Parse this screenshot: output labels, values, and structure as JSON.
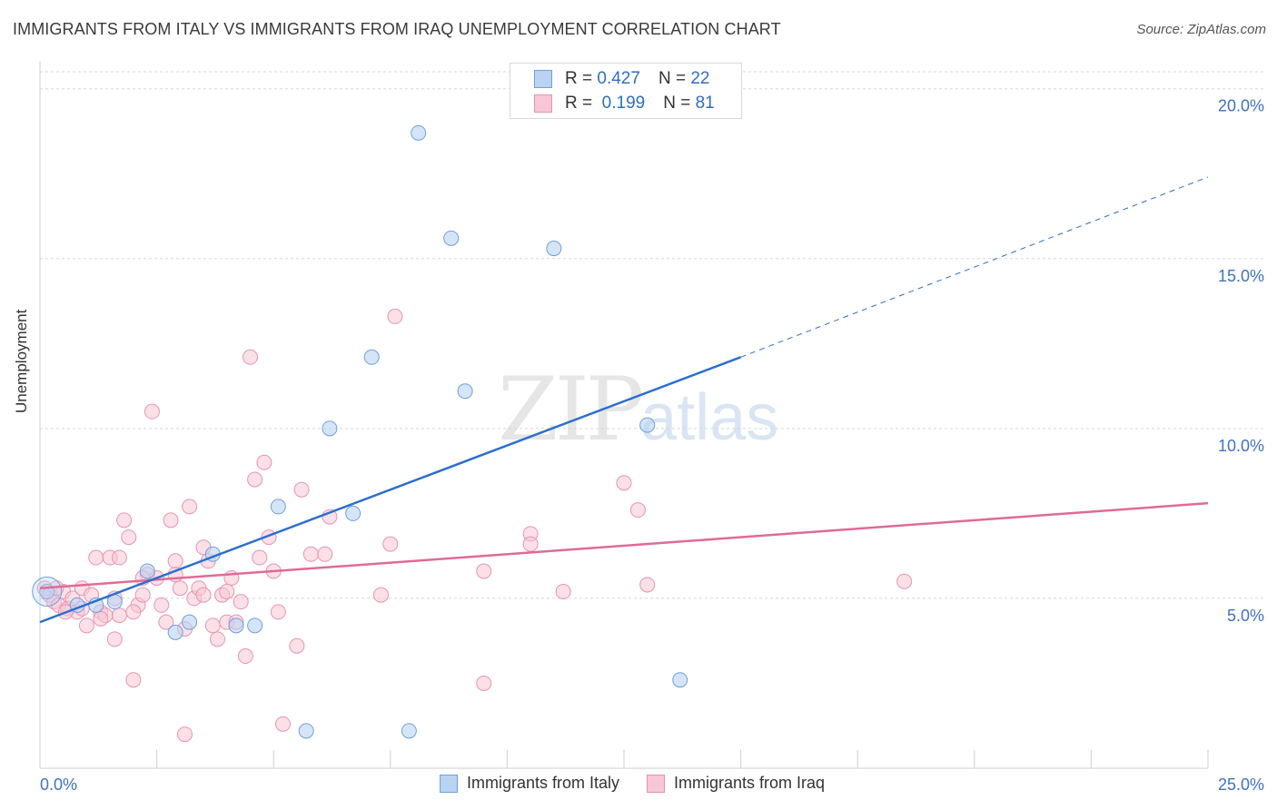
{
  "header": {
    "title": "IMMIGRANTS FROM ITALY VS IMMIGRANTS FROM IRAQ UNEMPLOYMENT CORRELATION CHART",
    "source": "Source: ZipAtlas.com"
  },
  "watermark": {
    "zip": "ZIP",
    "atlas": "atlas"
  },
  "stats": {
    "italy": {
      "r_label": "R =",
      "r_value": "0.427",
      "n_label": "N =",
      "n_value": "22"
    },
    "iraq": {
      "r_label": "R =",
      "r_value": "0.199",
      "n_label": "N =",
      "n_value": "81"
    }
  },
  "legend": {
    "italy": "Immigrants from Italy",
    "iraq": "Immigrants from Iraq"
  },
  "colors": {
    "italy_fill": "#b9d3f3",
    "italy_stroke": "#6fa0dd",
    "italy_line": "#2b6fce",
    "iraq_fill": "#f8c6d6",
    "iraq_stroke": "#e894b0",
    "iraq_line": "#e06b96",
    "tick_label": "#3f72c2"
  },
  "chart_data": {
    "type": "scatter",
    "title": "IMMIGRANTS FROM ITALY VS IMMIGRANTS FROM IRAQ UNEMPLOYMENT CORRELATION CHART",
    "xlabel": "",
    "ylabel": "Unemployment",
    "xlim": [
      0,
      25
    ],
    "ylim": [
      0,
      20.5
    ],
    "x_tick_labels": [
      "0.0%",
      "25.0%"
    ],
    "y_ticks": [
      5,
      10,
      15,
      20
    ],
    "y_tick_labels": [
      "5.0%",
      "10.0%",
      "15.0%",
      "20.0%"
    ],
    "grid": "horizontal dashed",
    "legend_position": "bottom",
    "series": [
      {
        "name": "Immigrants from Italy",
        "points": [
          [
            0.15,
            5.2
          ],
          [
            1.2,
            4.8
          ],
          [
            2.3,
            5.8
          ],
          [
            2.9,
            4.0
          ],
          [
            3.2,
            4.3
          ],
          [
            3.7,
            6.3
          ],
          [
            4.2,
            4.2
          ],
          [
            4.6,
            4.2
          ],
          [
            5.1,
            7.7
          ],
          [
            5.7,
            1.1
          ],
          [
            6.2,
            10.0
          ],
          [
            6.7,
            7.5
          ],
          [
            7.1,
            12.1
          ],
          [
            7.9,
            1.1
          ],
          [
            8.1,
            18.7
          ],
          [
            8.8,
            15.6
          ],
          [
            9.1,
            11.1
          ],
          [
            11.0,
            15.3
          ],
          [
            13.0,
            10.1
          ],
          [
            13.7,
            2.6
          ],
          [
            0.8,
            4.8
          ],
          [
            1.6,
            4.9
          ]
        ],
        "trend": {
          "x": [
            0,
            15
          ],
          "y": [
            4.3,
            12.1
          ],
          "dashed_to": [
            25,
            17.4
          ]
        }
      },
      {
        "name": "Immigrants from Iraq",
        "points": [
          [
            0.1,
            5.3
          ],
          [
            0.2,
            5.1
          ],
          [
            0.3,
            4.9
          ],
          [
            0.4,
            4.8
          ],
          [
            0.5,
            5.2
          ],
          [
            0.6,
            4.7
          ],
          [
            0.7,
            5.0
          ],
          [
            0.8,
            4.6
          ],
          [
            0.9,
            5.3
          ],
          [
            1.0,
            4.2
          ],
          [
            1.1,
            5.1
          ],
          [
            1.2,
            6.2
          ],
          [
            1.3,
            4.6
          ],
          [
            1.4,
            4.5
          ],
          [
            1.5,
            6.2
          ],
          [
            1.6,
            5.0
          ],
          [
            1.6,
            3.8
          ],
          [
            1.7,
            4.5
          ],
          [
            1.8,
            7.3
          ],
          [
            1.9,
            6.8
          ],
          [
            2.0,
            2.6
          ],
          [
            2.1,
            4.8
          ],
          [
            2.2,
            5.1
          ],
          [
            2.3,
            5.7
          ],
          [
            2.4,
            10.5
          ],
          [
            2.5,
            5.6
          ],
          [
            2.6,
            4.8
          ],
          [
            2.7,
            4.3
          ],
          [
            2.8,
            7.3
          ],
          [
            2.9,
            6.1
          ],
          [
            3.0,
            5.3
          ],
          [
            3.1,
            4.1
          ],
          [
            3.2,
            7.7
          ],
          [
            3.3,
            5.0
          ],
          [
            3.4,
            5.3
          ],
          [
            3.5,
            6.5
          ],
          [
            3.6,
            6.1
          ],
          [
            3.7,
            4.2
          ],
          [
            3.8,
            3.8
          ],
          [
            3.9,
            5.1
          ],
          [
            4.0,
            4.3
          ],
          [
            4.1,
            5.6
          ],
          [
            4.2,
            4.3
          ],
          [
            4.3,
            4.9
          ],
          [
            4.4,
            3.3
          ],
          [
            4.5,
            12.1
          ],
          [
            4.6,
            8.5
          ],
          [
            4.7,
            6.2
          ],
          [
            4.8,
            9.0
          ],
          [
            4.9,
            6.8
          ],
          [
            5.0,
            5.8
          ],
          [
            5.1,
            4.6
          ],
          [
            5.2,
            1.3
          ],
          [
            5.5,
            3.6
          ],
          [
            5.6,
            8.2
          ],
          [
            5.8,
            6.3
          ],
          [
            6.1,
            6.3
          ],
          [
            6.2,
            7.4
          ],
          [
            7.3,
            5.1
          ],
          [
            7.5,
            6.6
          ],
          [
            7.6,
            13.3
          ],
          [
            9.5,
            2.5
          ],
          [
            9.5,
            5.8
          ],
          [
            10.5,
            6.9
          ],
          [
            10.5,
            6.6
          ],
          [
            11.2,
            5.2
          ],
          [
            12.5,
            8.4
          ],
          [
            12.8,
            7.6
          ],
          [
            13.0,
            5.4
          ],
          [
            18.5,
            5.5
          ],
          [
            3.1,
            1.0
          ],
          [
            2.9,
            5.7
          ],
          [
            1.3,
            4.4
          ],
          [
            0.9,
            4.7
          ],
          [
            2.0,
            4.6
          ],
          [
            3.5,
            5.1
          ],
          [
            4.0,
            5.2
          ],
          [
            1.7,
            6.2
          ],
          [
            2.2,
            5.6
          ],
          [
            0.35,
            5.3
          ],
          [
            0.55,
            4.6
          ]
        ],
        "trend": {
          "x": [
            0,
            25
          ],
          "y": [
            5.3,
            7.8
          ]
        }
      }
    ]
  }
}
